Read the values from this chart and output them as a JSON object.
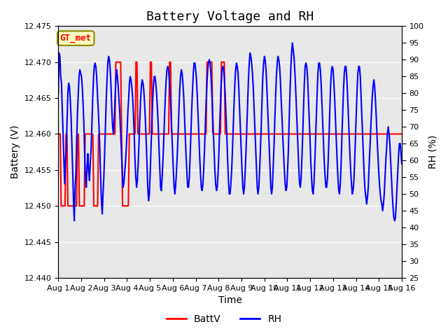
{
  "title": "Battery Voltage and RH",
  "xlabel": "Time",
  "ylabel_left": "Battery (V)",
  "ylabel_right": "RH (%)",
  "legend_label": "GT_met",
  "ylim_left": [
    12.44,
    12.475
  ],
  "ylim_right": [
    25,
    100
  ],
  "yticks_left": [
    12.44,
    12.445,
    12.45,
    12.455,
    12.46,
    12.465,
    12.47,
    12.475
  ],
  "yticks_right": [
    25,
    30,
    35,
    40,
    45,
    50,
    55,
    60,
    65,
    70,
    75,
    80,
    85,
    90,
    95,
    100
  ],
  "xtick_labels": [
    "Aug 1",
    "Aug 2",
    "Aug 3",
    "Aug 4",
    "Aug 5",
    "Aug 6",
    "Aug 7",
    "Aug 8",
    "Aug 9",
    "Aug 10",
    "Aug 11",
    "Aug 12",
    "Aug 13",
    "Aug 14",
    "Aug 15",
    "Aug 16"
  ],
  "background_color": "#ffffff",
  "plot_bg_color": "#e8e8e8",
  "grid_color": "#ffffff",
  "batt_color": "#ff0000",
  "rh_color": "#0000ff",
  "batt_linewidth": 1.5,
  "rh_linewidth": 1.5,
  "title_fontsize": 13,
  "axis_label_fontsize": 10,
  "tick_fontsize": 8,
  "legend_box_color": "#ffffc0",
  "legend_box_edge": "#888800",
  "batt_data": [
    12.46,
    12.46,
    12.46,
    12.45,
    12.45,
    12.45,
    12.45,
    12.45,
    12.46,
    12.46,
    12.45,
    12.45,
    12.45,
    12.45,
    12.45,
    12.45,
    12.45,
    12.45,
    12.45,
    12.45,
    12.46,
    12.46,
    12.45,
    12.45,
    12.45,
    12.45,
    12.45,
    12.45,
    12.46,
    12.46,
    12.46,
    12.46,
    12.46,
    12.46,
    12.46,
    12.46,
    12.46,
    12.45,
    12.45,
    12.45,
    12.45,
    12.45,
    12.46,
    12.46,
    12.46,
    12.46,
    12.46,
    12.46,
    12.46,
    12.46,
    12.46,
    12.46,
    12.46,
    12.46,
    12.46,
    12.46,
    12.46,
    12.46,
    12.46,
    12.46,
    12.47,
    12.47,
    12.47,
    12.47,
    12.47,
    12.47,
    12.46,
    12.45,
    12.45,
    12.45,
    12.45,
    12.45,
    12.45,
    12.45,
    12.46,
    12.46,
    12.46,
    12.46,
    12.46,
    12.46,
    12.46,
    12.47,
    12.47,
    12.46,
    12.46,
    12.46,
    12.46,
    12.46,
    12.46,
    12.46,
    12.46,
    12.46,
    12.46,
    12.46,
    12.46,
    12.46,
    12.47,
    12.47,
    12.46,
    12.46,
    12.46,
    12.46,
    12.46,
    12.46,
    12.46,
    12.46,
    12.46,
    12.46,
    12.46,
    12.46,
    12.46,
    12.46,
    12.46,
    12.46,
    12.46,
    12.46,
    12.47,
    12.47,
    12.46,
    12.46,
    12.46,
    12.46,
    12.46,
    12.46,
    12.46,
    12.46,
    12.46,
    12.46,
    12.46,
    12.46,
    12.46,
    12.46,
    12.46,
    12.46,
    12.46,
    12.46,
    12.46,
    12.46,
    12.46,
    12.46,
    12.46,
    12.46,
    12.46,
    12.46,
    12.46,
    12.46,
    12.46,
    12.46,
    12.46,
    12.46,
    12.46,
    12.46,
    12.46,
    12.46,
    12.46,
    12.47,
    12.47,
    12.47,
    12.47,
    12.47,
    12.47,
    12.46,
    12.46,
    12.46,
    12.46,
    12.46,
    12.46,
    12.46,
    12.46,
    12.46,
    12.47,
    12.47,
    12.47,
    12.47,
    12.46,
    12.46,
    12.46,
    12.46,
    12.46,
    12.46,
    12.46,
    12.46,
    12.46,
    12.46,
    12.46,
    12.46,
    12.46,
    12.46,
    12.46,
    12.46,
    12.46,
    12.46,
    12.46,
    12.46,
    12.46,
    12.46,
    12.46,
    12.46,
    12.46,
    12.46,
    12.46,
    12.46,
    12.46,
    12.46,
    12.46,
    12.46,
    12.46,
    12.46,
    12.46,
    12.46,
    12.46,
    12.46,
    12.46,
    12.46,
    12.46,
    12.46,
    12.46,
    12.46,
    12.46,
    12.46,
    12.46,
    12.46,
    12.46,
    12.46,
    12.46,
    12.46,
    12.46,
    12.46,
    12.46,
    12.46,
    12.46,
    12.46,
    12.46,
    12.46,
    12.46,
    12.46,
    12.46,
    12.46,
    12.46,
    12.46,
    12.46,
    12.46,
    12.46,
    12.46,
    12.46,
    12.46,
    12.46,
    12.46,
    12.46,
    12.46,
    12.46,
    12.46,
    12.46,
    12.46,
    12.46,
    12.46,
    12.46,
    12.46,
    12.46,
    12.46,
    12.46,
    12.46,
    12.46,
    12.46,
    12.46,
    12.46,
    12.46,
    12.46,
    12.46,
    12.46,
    12.46,
    12.46,
    12.46,
    12.46,
    12.46,
    12.46,
    12.46,
    12.46,
    12.46,
    12.46,
    12.46,
    12.46,
    12.46,
    12.46,
    12.46,
    12.46,
    12.46,
    12.46,
    12.46,
    12.46,
    12.46,
    12.46,
    12.46,
    12.46,
    12.46,
    12.46,
    12.46,
    12.46,
    12.46,
    12.46,
    12.46,
    12.46,
    12.46,
    12.46,
    12.46,
    12.46,
    12.46,
    12.46,
    12.46,
    12.46,
    12.46,
    12.46,
    12.46,
    12.46,
    12.46,
    12.46,
    12.46,
    12.46,
    12.46,
    12.46,
    12.46,
    12.46,
    12.46,
    12.46,
    12.46,
    12.46,
    12.46,
    12.46,
    12.46,
    12.46,
    12.46,
    12.46,
    12.46,
    12.46,
    12.46,
    12.46,
    12.46,
    12.46,
    12.46,
    12.46,
    12.46,
    12.46,
    12.46,
    12.46,
    12.46,
    12.46,
    12.46,
    12.46,
    12.46,
    12.46,
    12.46,
    12.46,
    12.46,
    12.46,
    12.46,
    12.46,
    12.46,
    12.46,
    12.46
  ],
  "rh_data": [
    80,
    92,
    91,
    85,
    83,
    75,
    68,
    60,
    53,
    60,
    63,
    72,
    80,
    83,
    82,
    78,
    73,
    65,
    57,
    48,
    42,
    52,
    56,
    66,
    74,
    80,
    85,
    87,
    86,
    85,
    82,
    77,
    71,
    62,
    55,
    52,
    58,
    62,
    57,
    54,
    59,
    63,
    70,
    78,
    84,
    88,
    89,
    88,
    85,
    80,
    75,
    70,
    63,
    55,
    48,
    44,
    50,
    55,
    62,
    70,
    78,
    84,
    89,
    91,
    90,
    87,
    82,
    75,
    70,
    68,
    72,
    78,
    84,
    87,
    85,
    82,
    78,
    74,
    68,
    63,
    57,
    52,
    53,
    56,
    59,
    63,
    68,
    74,
    78,
    83,
    85,
    84,
    82,
    79,
    74,
    68,
    60,
    55,
    52,
    54,
    59,
    65,
    72,
    78,
    82,
    84,
    83,
    81,
    77,
    72,
    66,
    59,
    52,
    48,
    50,
    56,
    63,
    71,
    77,
    82,
    85,
    85,
    83,
    80,
    76,
    71,
    64,
    58,
    52,
    51,
    55,
    60,
    66,
    73,
    79,
    84,
    87,
    88,
    87,
    84,
    80,
    75,
    69,
    63,
    57,
    52,
    50,
    53,
    57,
    62,
    68,
    75,
    81,
    85,
    87,
    86,
    83,
    79,
    73,
    67,
    61,
    56,
    52,
    52,
    55,
    61,
    68,
    75,
    81,
    86,
    89,
    89,
    87,
    84,
    79,
    73,
    67,
    61,
    56,
    52,
    51,
    53,
    57,
    63,
    70,
    77,
    83,
    87,
    89,
    90,
    89,
    86,
    81,
    75,
    69,
    63,
    57,
    53,
    51,
    52,
    56,
    62,
    70,
    77,
    83,
    87,
    88,
    87,
    84,
    79,
    73,
    67,
    60,
    54,
    50,
    50,
    53,
    57,
    63,
    70,
    77,
    83,
    87,
    89,
    88,
    86,
    81,
    75,
    69,
    63,
    57,
    52,
    50,
    52,
    57,
    63,
    70,
    77,
    84,
    89,
    92,
    91,
    89,
    86,
    82,
    76,
    70,
    64,
    58,
    52,
    50,
    52,
    57,
    63,
    70,
    78,
    85,
    89,
    91,
    90,
    87,
    82,
    76,
    70,
    64,
    58,
    52,
    50,
    52,
    58,
    64,
    72,
    79,
    85,
    89,
    91,
    90,
    88,
    84,
    78,
    73,
    67,
    62,
    57,
    53,
    51,
    52,
    57,
    63,
    72,
    80,
    87,
    92,
    95,
    93,
    91,
    87,
    82,
    76,
    70,
    64,
    58,
    53,
    52,
    55,
    61,
    68,
    76,
    83,
    88,
    89,
    88,
    85,
    79,
    73,
    67,
    60,
    55,
    51,
    50,
    53,
    59,
    66,
    73,
    80,
    86,
    89,
    89,
    87,
    83,
    77,
    71,
    65,
    59,
    55,
    52,
    52,
    55,
    61,
    68,
    76,
    83,
    87,
    88,
    87,
    83,
    78,
    72,
    66,
    60,
    55,
    51,
    50,
    53,
    59,
    67,
    74,
    81,
    86,
    88,
    88,
    85,
    80,
    74,
    68,
    62,
    57,
    53,
    50,
    51,
    54,
    60,
    67,
    74,
    81,
    86,
    88,
    88,
    85,
    79,
    73,
    67,
    61,
    55,
    51,
    49,
    47,
    49,
    52,
    58,
    63,
    69,
    74,
    79,
    82,
    84,
    82,
    78,
    73,
    67,
    62,
    57,
    53,
    50,
    48,
    47,
    45,
    47,
    50,
    55,
    60,
    64,
    68,
    70,
    68,
    65,
    60,
    55,
    50,
    46,
    43,
    42,
    43,
    47,
    52,
    57,
    62,
    65,
    65,
    62,
    59
  ],
  "n_points": 16,
  "xmin": 0,
  "xmax": 15
}
